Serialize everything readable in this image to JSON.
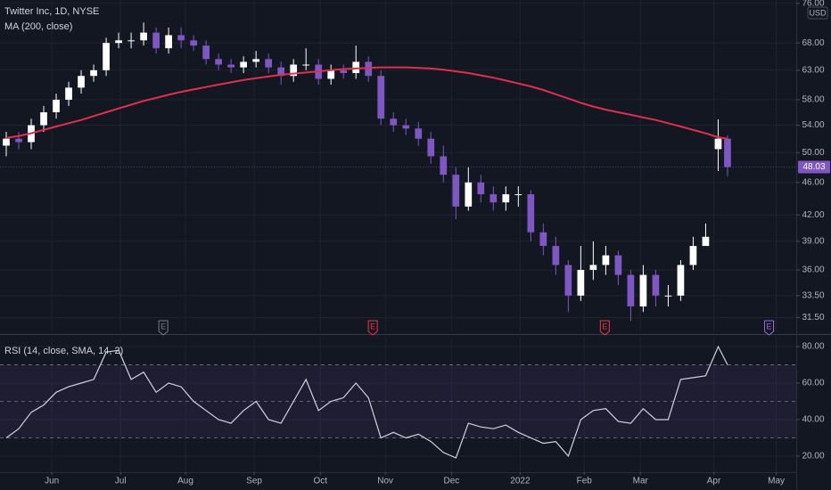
{
  "chart_data": [
    {
      "type": "candlestick",
      "title": "Twitter Inc, 1D, NYSE",
      "currency": "USD",
      "x": [
        2,
        6,
        10,
        14,
        18,
        22,
        26,
        30,
        34,
        38,
        42,
        46,
        50,
        54,
        58,
        62,
        66,
        70,
        74,
        78,
        82,
        86,
        90,
        94,
        98,
        102,
        106,
        110,
        114,
        118,
        122,
        126,
        130,
        134,
        138,
        142,
        146,
        150,
        154,
        158,
        162,
        166,
        170,
        174,
        178,
        182,
        186,
        190,
        194,
        198,
        202,
        206,
        210,
        214,
        218,
        222,
        226,
        230,
        233
      ],
      "open": [
        51,
        52,
        51.5,
        54,
        56,
        58,
        60,
        62,
        63,
        68,
        68.5,
        68.5,
        70,
        67,
        69.5,
        68.5,
        67.5,
        65,
        64,
        63.5,
        64.5,
        65,
        63.5,
        62,
        64,
        64,
        61.5,
        63,
        62.5,
        64.5,
        62,
        55,
        54,
        53.5,
        52,
        49.5,
        47,
        43,
        46,
        44.5,
        43.5,
        44.5,
        44.5,
        40,
        38.5,
        36.5,
        33.5,
        36,
        36.5,
        37.5,
        35.5,
        32.5,
        35.5,
        33.5,
        33.5,
        36.5,
        38.5,
        50.5,
        52
      ],
      "high": [
        53,
        53,
        55,
        57,
        59,
        61,
        63,
        64,
        69,
        70,
        70,
        72,
        71,
        71,
        71,
        69.5,
        68.5,
        66,
        65,
        65.5,
        66.5,
        66,
        64.5,
        65,
        67,
        65,
        64,
        64,
        67.5,
        65.5,
        63,
        56,
        55,
        54.5,
        53,
        51,
        48,
        48,
        47,
        45.5,
        45.5,
        45.5,
        45,
        41,
        39.5,
        37,
        38.5,
        39,
        38.5,
        38,
        36,
        36.5,
        36,
        34.5,
        37,
        39.5,
        41,
        54.9,
        52.5
      ],
      "low": [
        49.5,
        50.5,
        50.5,
        53,
        55,
        57,
        59,
        61,
        62,
        67,
        67,
        67.5,
        66,
        66,
        67,
        66.5,
        64,
        63,
        62.5,
        62.5,
        63.5,
        62.5,
        60.5,
        61,
        63,
        60.5,
        60.5,
        61.5,
        61.5,
        61,
        54,
        53,
        52.5,
        51,
        48.5,
        46,
        41.5,
        42.5,
        43.5,
        42.5,
        42.5,
        43,
        39,
        37.5,
        35.5,
        32,
        33,
        35,
        35.5,
        34.5,
        31.2,
        32,
        32.5,
        32.5,
        33,
        36,
        38.5,
        47.5,
        46.8
      ],
      "close": [
        52,
        51.5,
        54,
        56,
        58,
        60,
        62,
        63,
        68,
        68.5,
        68.5,
        70,
        67,
        69.5,
        68.5,
        67.5,
        65,
        64,
        63.5,
        64.5,
        65,
        63.5,
        62,
        64,
        64,
        61.5,
        63,
        62.5,
        64.5,
        62,
        55,
        54,
        53.5,
        52,
        49.5,
        47,
        43,
        46,
        44.5,
        43.5,
        44.5,
        44.5,
        40,
        38.5,
        36.5,
        33.5,
        36,
        36.5,
        37.5,
        35.5,
        32.5,
        35.5,
        33.5,
        33.5,
        36.5,
        38.5,
        39.5,
        52,
        48.03
      ],
      "up_color": "#ffffff",
      "down_color": "#7e57c2",
      "series": [
        {
          "name": "MA (200, close)",
          "color": "#e0304e",
          "values": [
            52.1,
            52.4,
            52.8,
            53.3,
            53.8,
            54.3,
            54.8,
            55.4,
            56,
            56.6,
            57.2,
            57.8,
            58.3,
            58.8,
            59.3,
            59.7,
            60.1,
            60.5,
            60.9,
            61.3,
            61.6,
            61.9,
            62.2,
            62.4,
            62.6,
            62.8,
            63,
            63.2,
            63.3,
            63.4,
            63.5,
            63.5,
            63.5,
            63.4,
            63.3,
            63.1,
            62.8,
            62.5,
            62.1,
            61.7,
            61.2,
            60.7,
            60.2,
            59.6,
            58.9,
            58.2,
            57.5,
            56.9,
            56.4,
            56,
            55.6,
            55.2,
            54.8,
            54.3,
            53.8,
            53.3,
            52.8,
            52.2,
            52
          ]
        }
      ],
      "last_price": 48.03,
      "events": {
        "x": [
          52.3,
          119.4,
          193.7,
          246.3
        ],
        "label": "E",
        "colors": [
          "#787b86",
          "#f23645",
          "#f23645",
          "#9c6ade"
        ]
      },
      "xlim": [
        0,
        255
      ],
      "ylim": [
        30.3,
        76.7
      ],
      "log_scale": true,
      "yticks": [
        {
          "value": 31.5,
          "label": "31.50"
        },
        {
          "value": 33.5,
          "label": "33.50"
        },
        {
          "value": 36,
          "label": "36.00"
        },
        {
          "value": 39,
          "label": "39.00"
        },
        {
          "value": 42,
          "label": "42.00"
        },
        {
          "value": 46,
          "label": "46.00"
        },
        {
          "value": 50,
          "label": "50.00"
        },
        {
          "value": 54,
          "label": "54.00"
        },
        {
          "value": 58,
          "label": "58.00"
        },
        {
          "value": 63,
          "label": "63.00"
        },
        {
          "value": 68,
          "label": "68.00"
        },
        {
          "value": 76,
          "label": "76.00"
        }
      ],
      "grid": true
    },
    {
      "type": "line",
      "x": [
        2,
        6,
        10,
        14,
        18,
        22,
        26,
        30,
        34,
        38,
        42,
        46,
        50,
        54,
        58,
        62,
        66,
        70,
        74,
        78,
        82,
        86,
        90,
        94,
        98,
        102,
        106,
        110,
        114,
        118,
        122,
        126,
        130,
        134,
        138,
        142,
        146,
        150,
        154,
        158,
        162,
        166,
        170,
        174,
        178,
        182,
        186,
        190,
        194,
        198,
        202,
        206,
        210,
        214,
        218,
        222,
        226,
        230,
        233
      ],
      "series": [
        {
          "name": "RSI (14, close, SMA, 14, 2)",
          "color": "#d1d4dc",
          "values": [
            30,
            35,
            44,
            48,
            55,
            58,
            60,
            62,
            77,
            78,
            62,
            66,
            55,
            60,
            58,
            50,
            45,
            40,
            38,
            45,
            50,
            40,
            38,
            50,
            62,
            45,
            50,
            52,
            60,
            52,
            30,
            33,
            30,
            32,
            28,
            22,
            19,
            38,
            36,
            35,
            37,
            33,
            30,
            27,
            28,
            20,
            40,
            45,
            46,
            39,
            38,
            46,
            40,
            40,
            62,
            63,
            64,
            80,
            70
          ]
        }
      ],
      "levels": [
        30,
        50,
        70
      ],
      "band": [
        30,
        70
      ],
      "band_color": "#7e57c2",
      "xlim": [
        0,
        255
      ],
      "ylim": [
        11.2,
        85.4
      ],
      "yticks": [
        {
          "value": 20,
          "label": "20.00"
        },
        {
          "value": 40,
          "label": "40.00"
        },
        {
          "value": 60,
          "label": "60.00"
        },
        {
          "value": 80,
          "label": "80.00"
        }
      ],
      "xticks": [
        {
          "value": 16.6,
          "label": "Jun"
        },
        {
          "value": 38.6,
          "label": "Jul"
        },
        {
          "value": 59.4,
          "label": "Aug"
        },
        {
          "value": 81.4,
          "label": "Sep"
        },
        {
          "value": 102.6,
          "label": "Oct"
        },
        {
          "value": 123.4,
          "label": "Nov"
        },
        {
          "value": 144.6,
          "label": "Dec"
        },
        {
          "value": 166.6,
          "label": "2022"
        },
        {
          "value": 187.1,
          "label": "Feb"
        },
        {
          "value": 205.1,
          "label": "Mar"
        },
        {
          "value": 228.6,
          "label": "Apr"
        },
        {
          "value": 248.6,
          "label": "May"
        }
      ],
      "grid": true
    }
  ]
}
